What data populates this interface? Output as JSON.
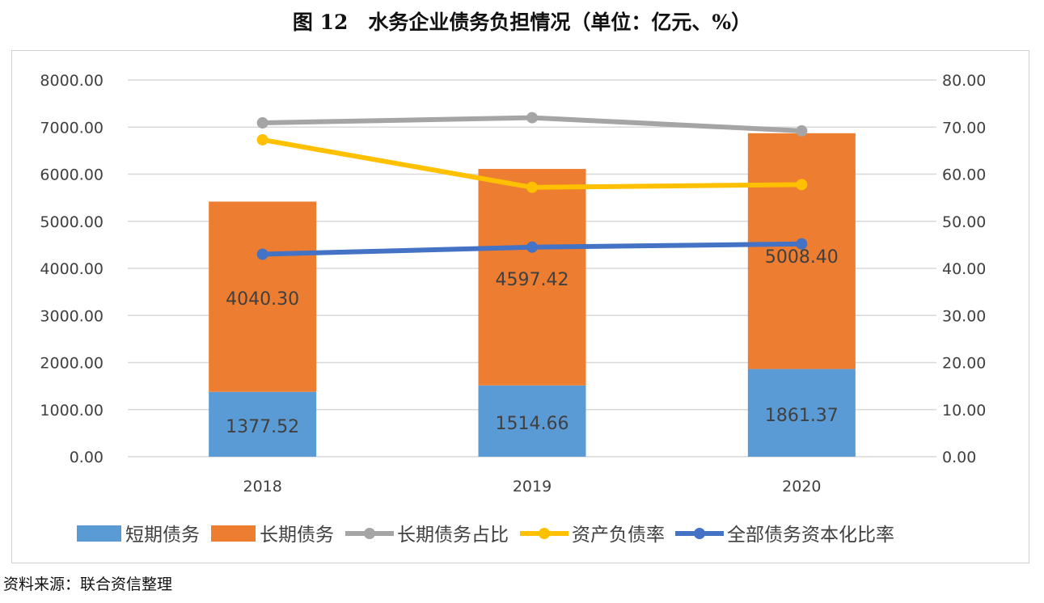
{
  "chart_data": {
    "type": "bar+line",
    "title": "图 12　水务企业债务负担情况（单位：亿元、%）",
    "categories": [
      "2018",
      "2019",
      "2020"
    ],
    "stacked_bars": [
      {
        "name": "短期债务",
        "color": "#5B9BD5",
        "values": [
          1377.52,
          1514.66,
          1861.37
        ],
        "labels": [
          "1377.52",
          "1514.66",
          "1861.37"
        ]
      },
      {
        "name": "长期债务",
        "color": "#ED7D31",
        "values": [
          4040.3,
          4597.42,
          5008.4
        ],
        "labels": [
          "4040.30",
          "4597.42",
          "5008.40"
        ]
      }
    ],
    "lines": [
      {
        "name": "长期债务占比",
        "color": "#A5A5A5",
        "values": [
          70.9,
          72.0,
          69.2
        ]
      },
      {
        "name": "资产负债率",
        "color": "#FFC000",
        "values": [
          67.3,
          57.2,
          57.8
        ]
      },
      {
        "name": "全部债务资本化比率",
        "color": "#4472C4",
        "values": [
          43.0,
          44.5,
          45.2
        ]
      }
    ],
    "y_left": {
      "range": [
        0,
        8000
      ],
      "ticks": [
        "0.00",
        "1000.00",
        "2000.00",
        "3000.00",
        "4000.00",
        "5000.00",
        "6000.00",
        "7000.00",
        "8000.00"
      ]
    },
    "y_right": {
      "range": [
        0,
        80
      ],
      "ticks": [
        "0.00",
        "10.00",
        "20.00",
        "30.00",
        "40.00",
        "50.00",
        "60.00",
        "70.00",
        "80.00"
      ]
    },
    "grid": true,
    "legend": "bottom"
  },
  "source": "资料来源：联合资信整理"
}
